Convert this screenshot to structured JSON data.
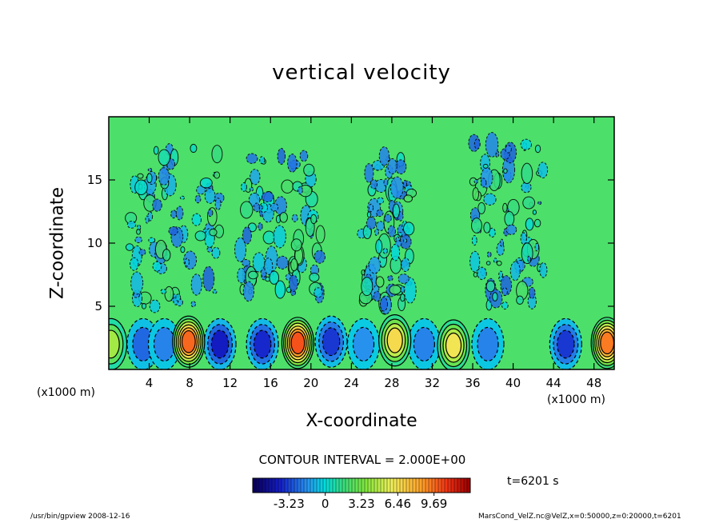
{
  "chart_data": {
    "type": "heatmap",
    "title": "vertical velocity",
    "xlabel": "X-coordinate",
    "ylabel": "Z-coordinate",
    "x_unit_left": "(x1000 m)",
    "x_unit_right": "(x1000 m)",
    "xlim": [
      0,
      50
    ],
    "ylim": [
      0,
      20
    ],
    "x_ticks": [
      4,
      8,
      12,
      16,
      20,
      24,
      28,
      32,
      36,
      40,
      44,
      48
    ],
    "y_ticks": [
      5,
      10,
      15
    ],
    "contour_interval_label": "CONTOUR INTERVAL = 2.000E+00",
    "colorbar": {
      "tick_labels": [
        "-3.23",
        "0",
        "3.23",
        "6.46",
        "9.69"
      ],
      "tick_values": [
        -3.23,
        0,
        3.23,
        6.46,
        9.69
      ],
      "range": [
        -6.46,
        12.92
      ]
    },
    "time_label": "t=6201  s",
    "updrafts": [
      {
        "x": 0.2,
        "z": 2.0,
        "w": 6.0
      },
      {
        "x": 7.9,
        "z": 2.2,
        "w": 11.5
      },
      {
        "x": 18.7,
        "z": 2.1,
        "w": 12.0
      },
      {
        "x": 28.3,
        "z": 2.3,
        "w": 8.5
      },
      {
        "x": 34.1,
        "z": 1.9,
        "w": 8.0
      },
      {
        "x": 49.3,
        "z": 2.1,
        "w": 11.0
      }
    ],
    "downdrafts": [
      {
        "x": 3.4,
        "z": 2.0,
        "w": -4.5
      },
      {
        "x": 5.5,
        "z": 2.0,
        "w": -3.5
      },
      {
        "x": 11.0,
        "z": 2.0,
        "w": -6.0
      },
      {
        "x": 15.2,
        "z": 2.0,
        "w": -5.5
      },
      {
        "x": 22.0,
        "z": 2.2,
        "w": -5.0
      },
      {
        "x": 25.2,
        "z": 2.0,
        "w": -3.0
      },
      {
        "x": 31.2,
        "z": 2.0,
        "w": -3.5
      },
      {
        "x": 37.5,
        "z": 2.0,
        "w": -3.5
      },
      {
        "x": 45.2,
        "z": 2.0,
        "w": -5.0
      }
    ],
    "turbulent_regions": [
      {
        "x_min": 2,
        "x_max": 11,
        "z_min": 5,
        "z_max": 18
      },
      {
        "x_min": 13,
        "x_max": 21,
        "z_min": 6,
        "z_max": 17
      },
      {
        "x_min": 25,
        "x_max": 30,
        "z_min": 5,
        "z_max": 17
      },
      {
        "x_min": 36,
        "x_max": 43,
        "z_min": 5,
        "z_max": 18
      }
    ]
  },
  "footer": {
    "left": "/usr/bin/gpview   2008-12-16",
    "right": "MarsCond_VelZ.nc@VelZ,x=0:50000,z=0:20000,t=6201"
  },
  "colors": {
    "background_field": "#4ce06a",
    "updraft_core": "#ff2a1a",
    "downdraft_core": "#0a14b4"
  }
}
